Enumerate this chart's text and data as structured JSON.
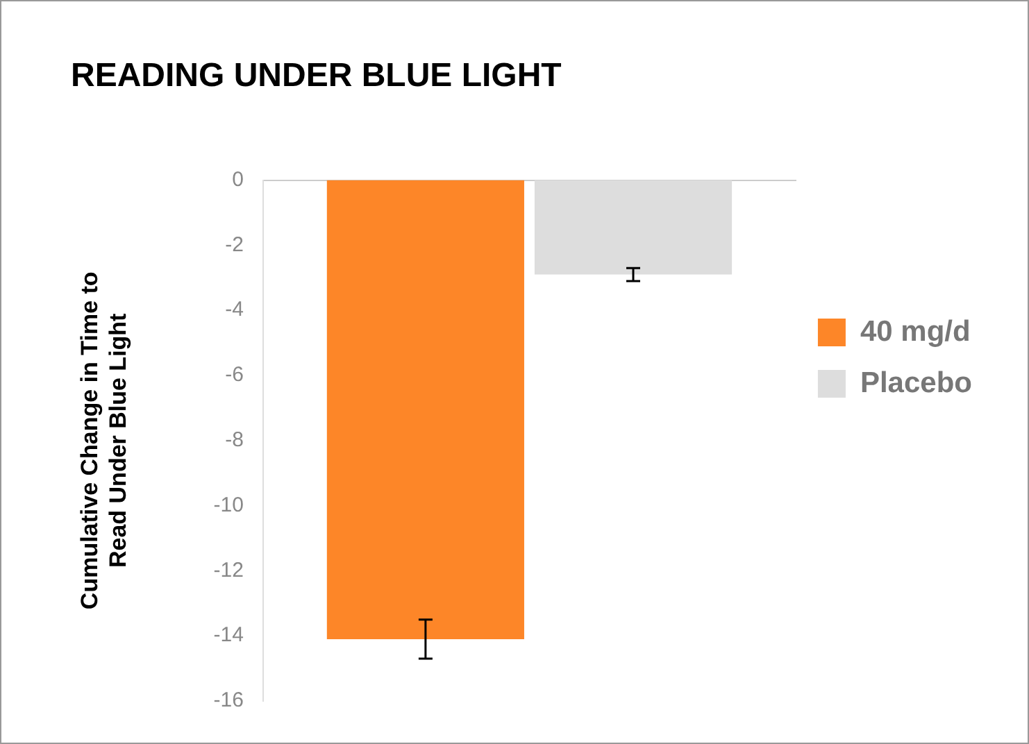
{
  "chart_data": {
    "type": "bar",
    "title": "READING UNDER BLUE LIGHT",
    "ylabel": "Cumulative Change in Time to Read Under Blue Light",
    "categories": [
      null
    ],
    "series": [
      {
        "name": "40 mg/d",
        "color": "#fd8628",
        "values": [
          -14.1
        ],
        "errors": [
          0.6
        ]
      },
      {
        "name": "Placebo",
        "color": "#dddddd",
        "values": [
          -2.9
        ],
        "errors": [
          0.2
        ]
      }
    ],
    "ylim": [
      -16,
      0
    ],
    "yticks": [
      0,
      -2,
      -4,
      -6,
      -8,
      -10,
      -12,
      -14,
      -16
    ],
    "grid": false,
    "legend": "right"
  }
}
